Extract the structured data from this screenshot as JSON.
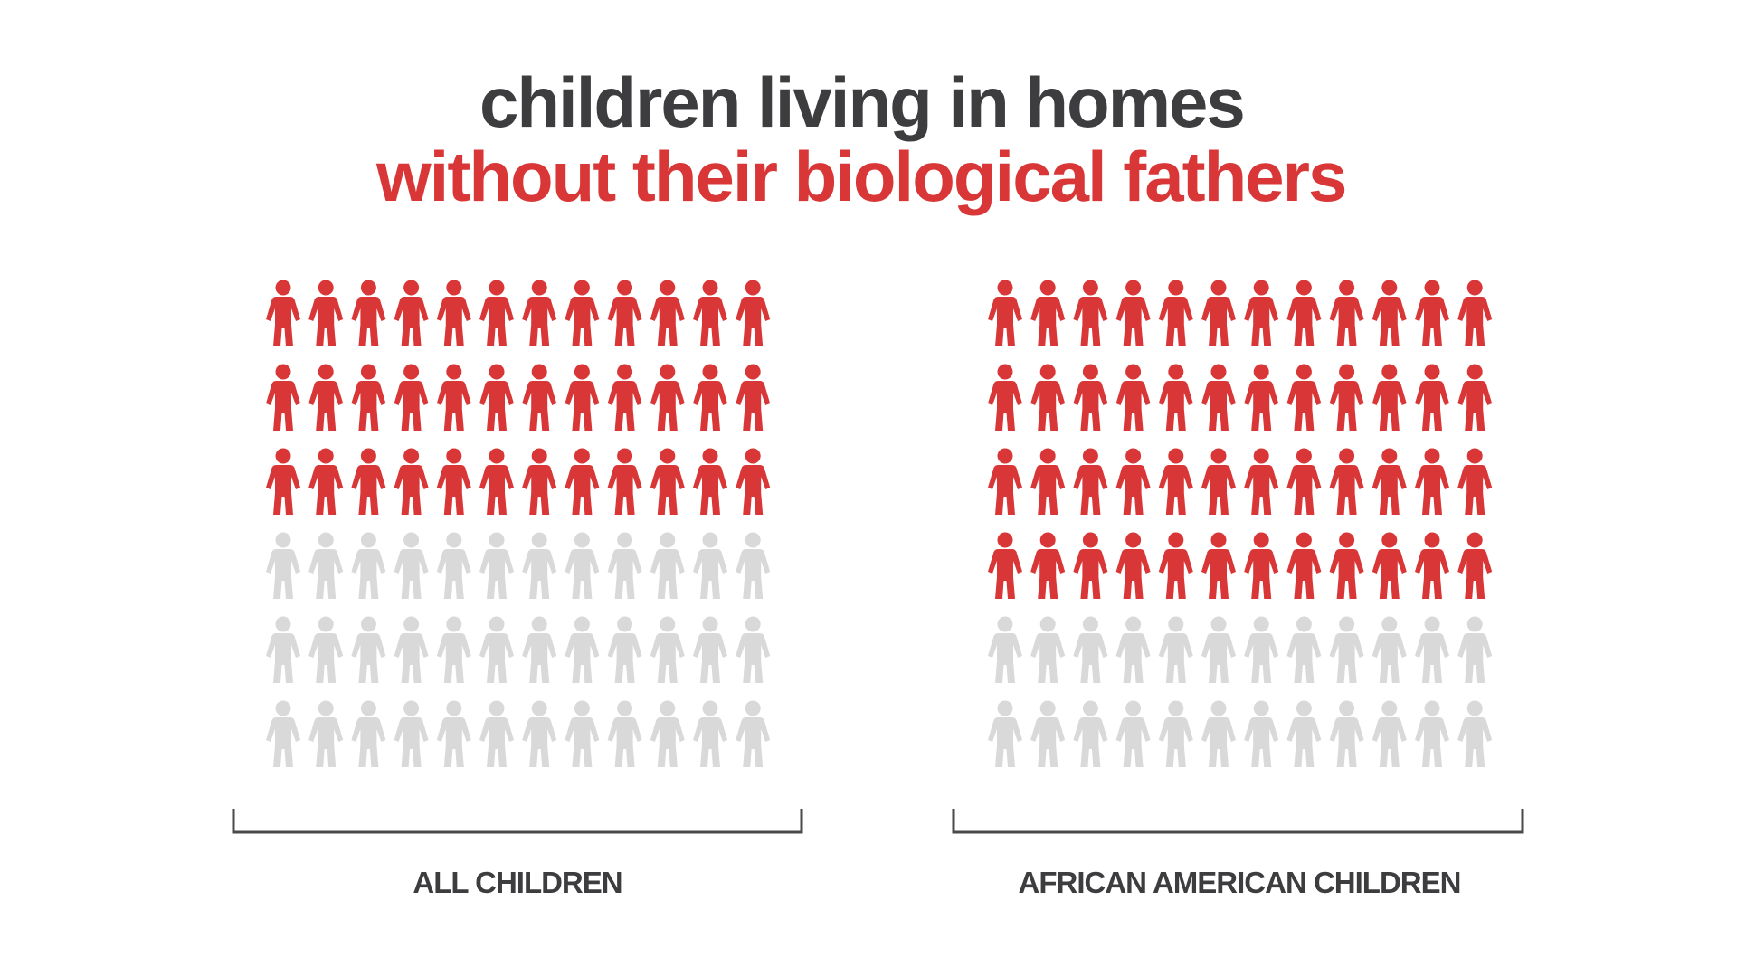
{
  "title": {
    "line1": "children living in homes",
    "line2": "without their biological fathers"
  },
  "colors": {
    "title_dark": "#3d3d3f",
    "accent_red": "#d93737",
    "inactive_gray": "#d9d9d9",
    "bracket": "#4a4a4c"
  },
  "icon": "child-figure-icon",
  "chart_data": {
    "type": "pictogram",
    "units_per_icon": 1,
    "series": [
      {
        "name": "ALL CHILDREN",
        "rows": 6,
        "columns": 12,
        "total_icons": 72,
        "highlighted_icons": 36,
        "highlighted_fraction": 0.5
      },
      {
        "name": "AFRICAN AMERICAN CHILDREN",
        "rows": 6,
        "columns": 12,
        "total_icons": 72,
        "highlighted_icons": 48,
        "highlighted_fraction": 0.6667
      }
    ]
  }
}
